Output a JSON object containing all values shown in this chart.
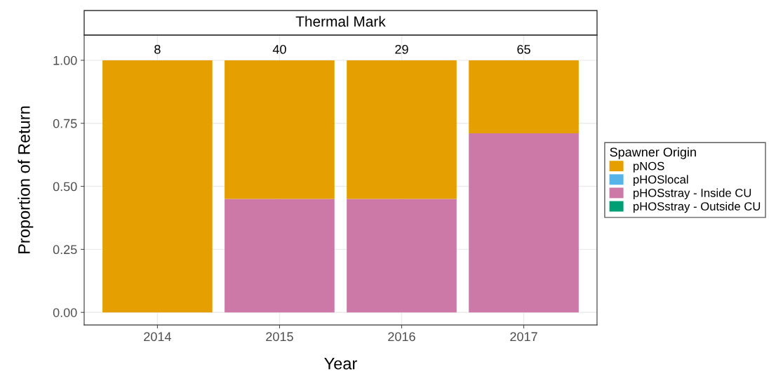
{
  "chart_data": {
    "type": "bar",
    "title": "Thermal Mark",
    "xlabel": "Year",
    "ylabel": "Proportion of Return",
    "legend_title": "Spawner Origin",
    "categories": [
      "2014",
      "2015",
      "2016",
      "2017"
    ],
    "stacked": true,
    "series": [
      {
        "name": "pHOSstray - Outside CU",
        "color": "#009e73",
        "values": [
          0,
          0,
          0,
          0
        ]
      },
      {
        "name": "pHOSstray - Inside CU",
        "color": "#cc79a7",
        "values": [
          0,
          0.45,
          0.45,
          0.71
        ]
      },
      {
        "name": "pHOSlocal",
        "color": "#56b4e9",
        "values": [
          0,
          0,
          0,
          0
        ]
      },
      {
        "name": "pNOS",
        "color": "#e69f00",
        "values": [
          1.0,
          0.55,
          0.55,
          0.29
        ]
      }
    ],
    "annotations": [
      {
        "text": "8",
        "x": "2014",
        "y": 1.0
      },
      {
        "text": "40",
        "x": "2015",
        "y": 1.0
      },
      {
        "text": "29",
        "x": "2016",
        "y": 1.0
      },
      {
        "text": "65",
        "x": "2017",
        "y": 1.0
      }
    ],
    "ylim": [
      -0.05,
      1.1
    ],
    "yticks": [
      {
        "value": 0,
        "label": "0.00"
      },
      {
        "value": 0.25,
        "label": "0.25"
      },
      {
        "value": 0.5,
        "label": "0.50"
      },
      {
        "value": 0.75,
        "label": "0.75"
      },
      {
        "value": 1.0,
        "label": "1.00"
      }
    ],
    "grid": true,
    "legend": "right"
  }
}
